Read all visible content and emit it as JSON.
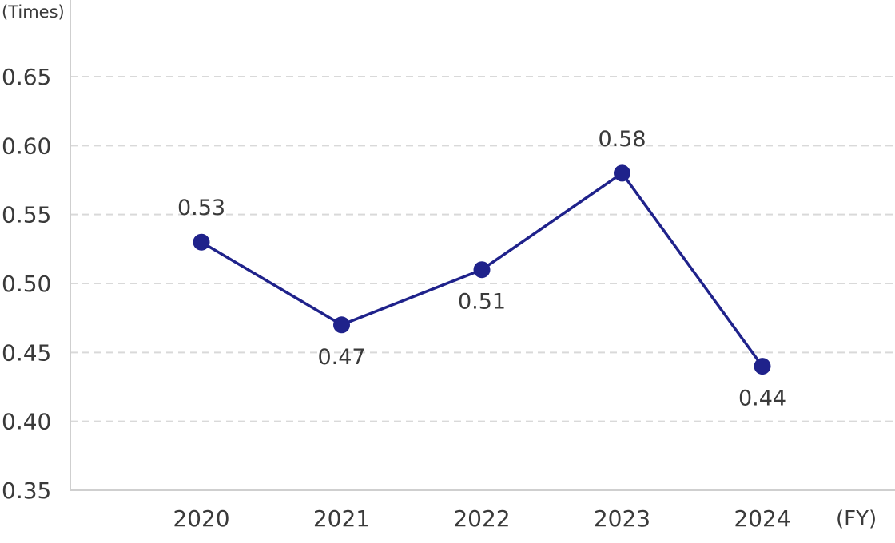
{
  "chart_data": {
    "type": "line",
    "y_unit_label": "(Times)",
    "x_unit_label": "(FY)",
    "categories": [
      "2020",
      "2021",
      "2022",
      "2023",
      "2024"
    ],
    "series": [
      {
        "values": [
          0.53,
          0.47,
          0.51,
          0.58,
          0.44
        ],
        "labels": [
          "0.53",
          "0.47",
          "0.51",
          "0.58",
          "0.44"
        ],
        "label_position": [
          "above",
          "below",
          "below",
          "above",
          "below"
        ],
        "color": "#1f228b"
      }
    ],
    "ylim": [
      0.35,
      0.65
    ],
    "yticks": [
      "0.35",
      "0.40",
      "0.45",
      "0.50",
      "0.55",
      "0.60",
      "0.65"
    ],
    "grid": true
  }
}
